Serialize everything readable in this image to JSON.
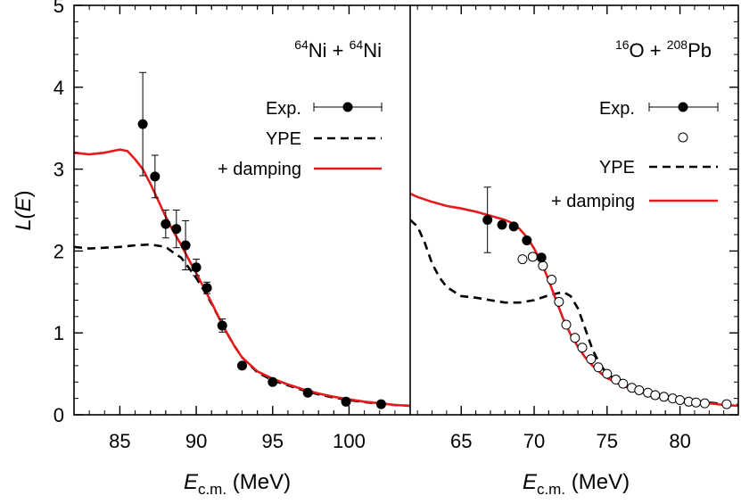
{
  "chart_data": [
    {
      "type": "line",
      "panel_title": {
        "a_sup": "64",
        "a": "Ni + ",
        "b_sup": "64",
        "b": "Ni"
      },
      "xlabel": {
        "main": "E",
        "sub": "c.m.",
        "unit": " (MeV)"
      },
      "ylabel": {
        "main": "L(",
        "var": "E",
        "close": ")"
      },
      "xlim": [
        82,
        104
      ],
      "ylim": [
        0,
        5
      ],
      "x_ticks": [
        85,
        90,
        95,
        100
      ],
      "y_ticks": [
        0,
        1,
        2,
        3,
        4,
        5
      ],
      "legend": {
        "exp": "Exp.",
        "ype": "YPE",
        "damping": "+ damping"
      },
      "exp_points": [
        {
          "x": 86.5,
          "y": 3.55,
          "err": 0.63
        },
        {
          "x": 87.3,
          "y": 2.91,
          "err": 0.26
        },
        {
          "x": 88.0,
          "y": 2.33,
          "err": 0.17
        },
        {
          "x": 88.7,
          "y": 2.27,
          "err": 0.23
        },
        {
          "x": 89.3,
          "y": 2.07,
          "err": 0.3
        },
        {
          "x": 90.0,
          "y": 1.8,
          "err": 0.1
        },
        {
          "x": 90.7,
          "y": 1.55,
          "err": 0.07
        },
        {
          "x": 91.7,
          "y": 1.09,
          "err": 0.08
        },
        {
          "x": 93.0,
          "y": 0.6,
          "err": 0.03
        },
        {
          "x": 95.0,
          "y": 0.4,
          "err": 0.03
        },
        {
          "x": 97.3,
          "y": 0.27,
          "err": 0.02
        },
        {
          "x": 99.8,
          "y": 0.16,
          "err": 0.02
        },
        {
          "x": 102.1,
          "y": 0.13,
          "err": 0.02
        }
      ],
      "series": [
        {
          "key": "ype",
          "color": "#000000",
          "dashed": true,
          "x": [
            82,
            83,
            84,
            85,
            86,
            87,
            88,
            88.5,
            89,
            89.5,
            90,
            90.5,
            91,
            91.5,
            92,
            92.5,
            93,
            94,
            95,
            96,
            97,
            98,
            99,
            100,
            101,
            102,
            103,
            104
          ],
          "y": [
            2.05,
            2.03,
            2.04,
            2.05,
            2.07,
            2.08,
            2.05,
            1.98,
            1.92,
            1.8,
            1.67,
            1.52,
            1.36,
            1.18,
            1.0,
            0.84,
            0.7,
            0.52,
            0.42,
            0.36,
            0.3,
            0.25,
            0.21,
            0.18,
            0.155,
            0.135,
            0.12,
            0.11
          ]
        },
        {
          "key": "damping",
          "color": "#e41a1c",
          "dashed": false,
          "x": [
            82,
            83,
            84,
            85,
            85.5,
            86,
            86.5,
            87,
            87.5,
            88,
            88.5,
            89,
            89.5,
            90,
            90.5,
            91,
            91.5,
            92,
            92.5,
            93,
            94,
            95,
            96,
            97,
            98,
            99,
            100,
            101,
            102,
            103,
            104
          ],
          "y": [
            3.2,
            3.18,
            3.2,
            3.24,
            3.22,
            3.12,
            3.0,
            2.82,
            2.62,
            2.42,
            2.24,
            2.08,
            1.9,
            1.73,
            1.55,
            1.37,
            1.18,
            1.0,
            0.84,
            0.7,
            0.53,
            0.44,
            0.37,
            0.31,
            0.26,
            0.22,
            0.19,
            0.16,
            0.14,
            0.12,
            0.11
          ]
        }
      ]
    },
    {
      "type": "line",
      "panel_title": {
        "a_sup": "16",
        "a": "O + ",
        "b_sup": "208",
        "b": "Pb"
      },
      "xlabel": {
        "main": "E",
        "sub": "c.m.",
        "unit": " (MeV)"
      },
      "xlim": [
        61.5,
        84
      ],
      "ylim": [
        0,
        5
      ],
      "x_ticks": [
        65,
        70,
        75,
        80
      ],
      "legend": {
        "exp": "Exp.",
        "ype": "YPE",
        "damping": "+ damping"
      },
      "exp_points": [
        {
          "x": 66.8,
          "y": 2.38,
          "err": 0.4
        },
        {
          "x": 67.8,
          "y": 2.32,
          "err": 0.03
        },
        {
          "x": 68.6,
          "y": 2.3,
          "err": 0.03
        },
        {
          "x": 69.5,
          "y": 2.13,
          "err": 0.03
        },
        {
          "x": 70.5,
          "y": 1.92,
          "err": 0.03
        }
      ],
      "exp_points_open": [
        {
          "x": 69.2,
          "y": 1.9
        },
        {
          "x": 69.9,
          "y": 1.93
        },
        {
          "x": 70.6,
          "y": 1.82
        },
        {
          "x": 71.2,
          "y": 1.65
        },
        {
          "x": 71.7,
          "y": 1.38
        },
        {
          "x": 72.2,
          "y": 1.1
        },
        {
          "x": 72.8,
          "y": 0.94
        },
        {
          "x": 73.3,
          "y": 0.82
        },
        {
          "x": 73.9,
          "y": 0.68
        },
        {
          "x": 74.4,
          "y": 0.58
        },
        {
          "x": 75.0,
          "y": 0.5
        },
        {
          "x": 75.6,
          "y": 0.43
        },
        {
          "x": 76.1,
          "y": 0.38
        },
        {
          "x": 76.7,
          "y": 0.33
        },
        {
          "x": 77.2,
          "y": 0.3
        },
        {
          "x": 77.8,
          "y": 0.27
        },
        {
          "x": 78.3,
          "y": 0.24
        },
        {
          "x": 78.9,
          "y": 0.22
        },
        {
          "x": 79.5,
          "y": 0.2
        },
        {
          "x": 80.0,
          "y": 0.18
        },
        {
          "x": 80.6,
          "y": 0.16
        },
        {
          "x": 81.1,
          "y": 0.15
        },
        {
          "x": 81.7,
          "y": 0.14
        },
        {
          "x": 83.2,
          "y": 0.13
        }
      ],
      "series": [
        {
          "key": "ype",
          "color": "#000000",
          "dashed": true,
          "x": [
            61.5,
            62,
            62.5,
            63,
            63.5,
            64,
            65,
            66,
            67,
            68,
            69,
            70,
            71,
            72,
            72.5,
            73,
            73.5,
            74,
            74.5,
            75,
            76,
            77,
            78,
            79,
            80,
            81,
            82,
            83,
            84
          ],
          "y": [
            2.38,
            2.3,
            2.1,
            1.85,
            1.68,
            1.56,
            1.45,
            1.43,
            1.4,
            1.37,
            1.37,
            1.4,
            1.46,
            1.5,
            1.45,
            1.3,
            1.05,
            0.8,
            0.62,
            0.5,
            0.38,
            0.31,
            0.26,
            0.22,
            0.19,
            0.17,
            0.15,
            0.13,
            0.12
          ]
        },
        {
          "key": "damping",
          "color": "#e41a1c",
          "dashed": false,
          "x": [
            61.5,
            62,
            63,
            64,
            65,
            66,
            67,
            68,
            68.5,
            69,
            69.5,
            70,
            70.5,
            71,
            71.5,
            72,
            72.5,
            73,
            73.5,
            74,
            74.5,
            75,
            76,
            77,
            78,
            79,
            80,
            81,
            82,
            83,
            84
          ],
          "y": [
            2.7,
            2.66,
            2.6,
            2.55,
            2.52,
            2.48,
            2.43,
            2.38,
            2.34,
            2.27,
            2.17,
            2.03,
            1.86,
            1.64,
            1.4,
            1.17,
            0.98,
            0.83,
            0.7,
            0.6,
            0.52,
            0.45,
            0.36,
            0.3,
            0.25,
            0.21,
            0.18,
            0.16,
            0.14,
            0.12,
            0.11
          ]
        }
      ]
    }
  ]
}
